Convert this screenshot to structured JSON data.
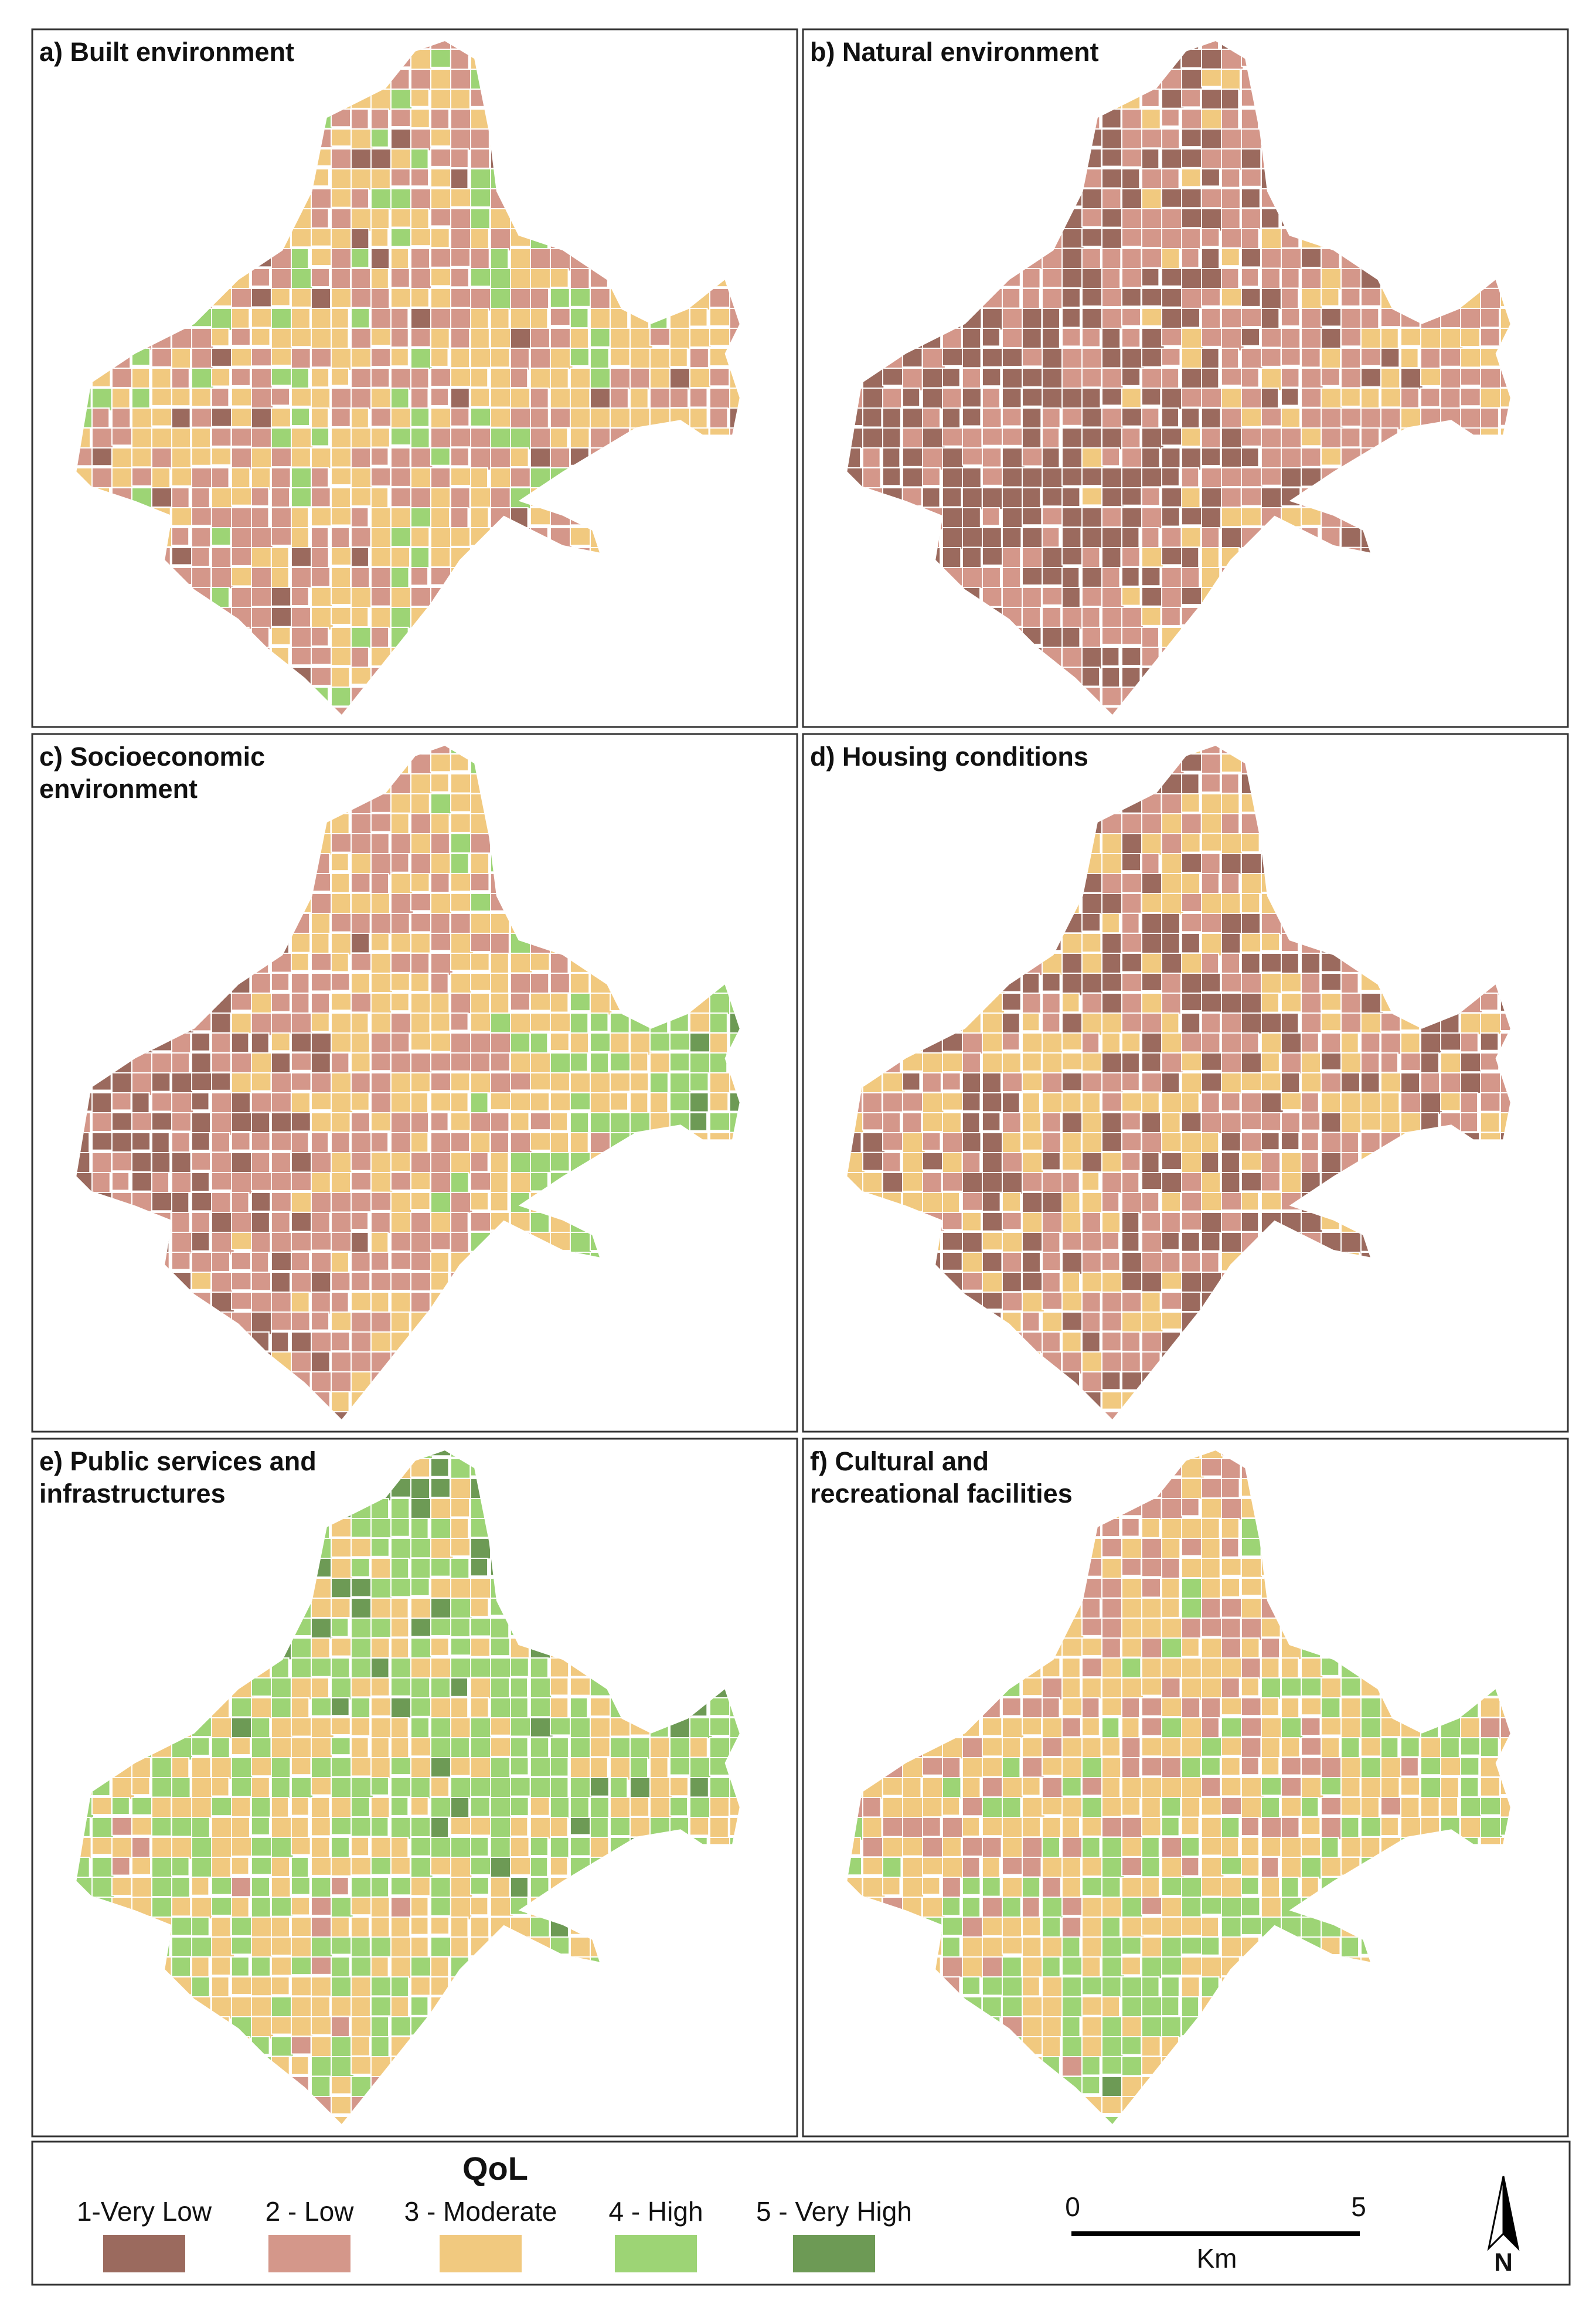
{
  "panels": [
    {
      "title_lines": [
        "a) Built environment"
      ]
    },
    {
      "title_lines": [
        "b) Natural environment"
      ]
    },
    {
      "title_lines": [
        "c) Socioeconomic",
        "environment"
      ]
    },
    {
      "title_lines": [
        "d) Housing conditions"
      ]
    },
    {
      "title_lines": [
        "e) Public services and",
        "infrastructures"
      ]
    },
    {
      "title_lines": [
        "f) Cultural and",
        "recreational facilities"
      ]
    }
  ],
  "legend": {
    "title": "QoL",
    "items": [
      {
        "label": "1-Very Low",
        "color": "#9b6a5e"
      },
      {
        "label": "2 - Low",
        "color": "#d4978a"
      },
      {
        "label": "3 - Moderate",
        "color": "#f1c97f"
      },
      {
        "label": "4 - High",
        "color": "#9dd475"
      },
      {
        "label": "5 - Very High",
        "color": "#6d9a55"
      }
    ]
  },
  "scale_bar": {
    "labels": [
      "0",
      "5"
    ],
    "unit": "Km"
  },
  "north_arrow": "N"
}
